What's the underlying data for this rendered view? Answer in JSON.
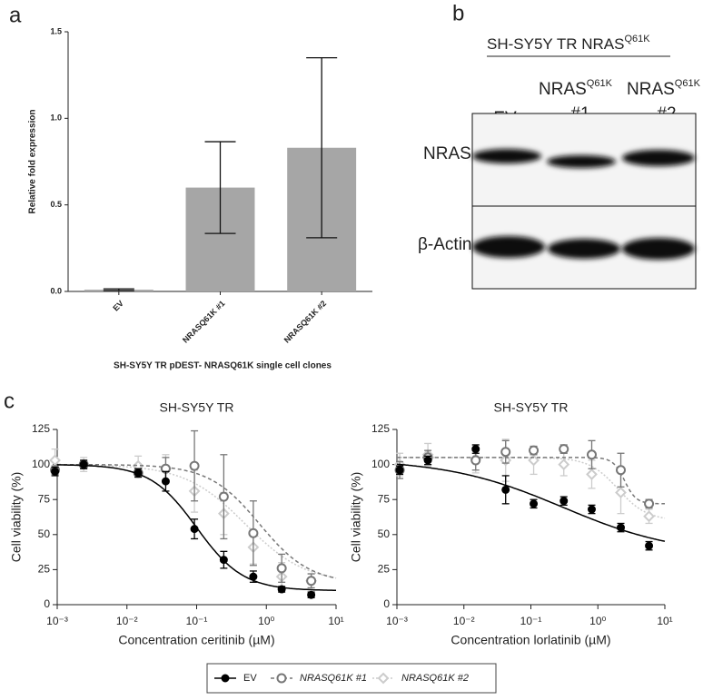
{
  "panels": [
    "a",
    "b",
    "c"
  ],
  "blot": {
    "title": {
      "text": "SH-SY5Y TR NRAS",
      "sup": "Q61K"
    },
    "lanes": [
      {
        "name": "EV"
      },
      {
        "name": "NRAS",
        "sup": "Q61K",
        "number": "#1"
      },
      {
        "name": "NRAS",
        "sup": "Q61K",
        "number": "#2"
      }
    ],
    "rows": [
      "NRAS",
      "β-Actin"
    ]
  },
  "legend": {
    "series_of_chart": 2
  },
  "chart_data": [
    {
      "type": "bar",
      "y_label": "Relative fold expression",
      "x_label": "SH-SY5Y TR pDEST- NRASQ61K single cell clones",
      "categories": [
        "EV",
        "NRASQ61K #1",
        "NRASQ61K #2"
      ],
      "values": [
        0.01,
        0.6,
        0.83
      ],
      "errors": [
        0.005,
        0.265,
        0.52
      ],
      "color": "#a6a6a6",
      "ylim": [
        0,
        1.5
      ],
      "yticks": [
        {
          "value": 0,
          "label": "0.0"
        },
        0.5,
        {
          "value": 1,
          "label": "1.0"
        },
        1.5
      ]
    },
    {
      "type": "scatter",
      "title": "SH-SY5Y TR",
      "x_label": "Concentration ceritinib (µM)",
      "y_label": "Cell viability (%)",
      "x_log": true,
      "xlim": [
        0.001,
        10
      ],
      "xticks": [
        {
          "value": 0.001,
          "label": "10⁻³"
        },
        {
          "value": 0.01,
          "label": "10⁻²"
        },
        {
          "value": 0.1,
          "label": "10⁻¹"
        },
        {
          "value": 1,
          "label": "10⁰"
        },
        {
          "value": 10,
          "label": "10¹"
        }
      ],
      "ylim": [
        0,
        125
      ],
      "yticks": [
        0,
        25,
        50,
        75,
        100,
        125
      ],
      "x": [
        0.00093,
        0.0024,
        0.0145,
        0.036,
        0.093,
        0.245,
        0.65,
        1.66,
        4.4
      ],
      "series": [
        {
          "name": "EV",
          "color": "#000000",
          "marker": "circle",
          "filled": true,
          "line_style": "solid",
          "values": [
            95,
            100,
            94,
            88,
            54,
            32,
            20,
            11,
            7
          ],
          "errors": [
            3,
            3,
            3,
            7,
            7,
            6,
            4,
            2,
            2
          ],
          "fit": {
            "top": 100,
            "bottom": 10,
            "ic50": 0.1,
            "hill": 1.3
          }
        },
        {
          "name": "NRASQ61K #1",
          "color": "#777777",
          "marker": "circle",
          "filled": false,
          "line_style": "dashed",
          "values": [
            96,
            100,
            94,
            97,
            99,
            77,
            51,
            26,
            17
          ],
          "errors": [
            3,
            3,
            3,
            8,
            25,
            30,
            23,
            10,
            5
          ],
          "fit": {
            "top": 100,
            "bottom": 15,
            "ic50": 0.8,
            "hill": 1.2
          }
        },
        {
          "name": "NRASQ61K #2",
          "color": "#cccccc",
          "marker": "diamond",
          "filled": false,
          "line_style": "dotted",
          "values": [
            103,
            100,
            99,
            97,
            81,
            65,
            41,
            20,
            17
          ],
          "errors": [
            8,
            5,
            7,
            10,
            15,
            15,
            12,
            10,
            5
          ],
          "fit": {
            "top": 100,
            "bottom": 15,
            "ic50": 0.5,
            "hill": 1
          }
        }
      ]
    },
    {
      "type": "scatter",
      "title": "SH-SY5Y TR",
      "x_label": "Concentration lorlatinib (µM)",
      "y_label": "Cell viability (%)",
      "x_log": true,
      "xlim": [
        0.001,
        10
      ],
      "xticks": [
        {
          "value": 0.001,
          "label": "10⁻³"
        },
        {
          "value": 0.01,
          "label": "10⁻²"
        },
        {
          "value": 0.1,
          "label": "10⁻¹"
        },
        {
          "value": 1,
          "label": "10⁰"
        },
        {
          "value": 10,
          "label": "10¹"
        }
      ],
      "ylim": [
        0,
        125
      ],
      "yticks": [
        0,
        25,
        50,
        75,
        100,
        125
      ],
      "x": [
        0.0011,
        0.0029,
        0.015,
        0.042,
        0.11,
        0.31,
        0.81,
        2.2,
        5.8
      ],
      "series": [
        {
          "name": "EV",
          "color": "#000000",
          "marker": "circle",
          "filled": true,
          "line_style": "solid",
          "values": [
            96,
            103,
            111,
            82,
            72,
            74,
            68,
            55,
            42
          ],
          "errors": [
            3,
            3,
            3,
            10,
            3,
            3,
            3,
            3,
            3
          ],
          "fit": {
            "top": 104,
            "bottom": 35,
            "ic50": 0.3,
            "hill": 0.5
          }
        },
        {
          "name": "NRASQ61K #1",
          "color": "#777777",
          "marker": "circle",
          "filled": false,
          "line_style": "dashed",
          "values": [
            96,
            105,
            103,
            109,
            110,
            111,
            107,
            96,
            72
          ],
          "errors": [
            6,
            5,
            7,
            8,
            3,
            3,
            10,
            12,
            3
          ],
          "fit": {
            "top": 105,
            "bottom": 72,
            "ic50": 2.5,
            "hill": 5
          }
        },
        {
          "name": "NRASQ61K #2",
          "color": "#cccccc",
          "marker": "diamond",
          "filled": false,
          "line_style": "dotted",
          "values": [
            100,
            107,
            104,
            103,
            103,
            100,
            93,
            80,
            63
          ],
          "errors": [
            8,
            8,
            10,
            15,
            10,
            8,
            10,
            15,
            5
          ],
          "fit": {
            "top": 105,
            "bottom": 60,
            "ic50": 2,
            "hill": 2
          }
        }
      ]
    }
  ]
}
